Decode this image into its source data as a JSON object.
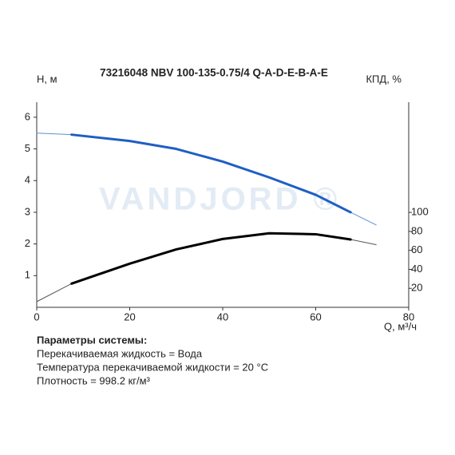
{
  "chart_data": {
    "type": "line",
    "title": "73216048 NBV 100-135-0.75/4 Q-A-D-E-B-A-E",
    "watermark": "VANDJORD ®",
    "y_label": "H, м",
    "y2_label": "КПД, %",
    "x_label": "Q, м³/ч",
    "x": [
      0,
      7.5,
      20,
      30,
      40,
      50,
      60,
      67.5,
      73
    ],
    "series": [
      {
        "color": "#5b8fd6",
        "width": 1,
        "values": [
          5.5,
          5.45,
          5.25,
          5.0,
          4.6,
          4.1,
          3.55,
          3.0,
          2.6
        ]
      },
      {
        "color": "#1f5fc4",
        "width": 3,
        "values": [
          null,
          5.45,
          5.25,
          5.0,
          4.6,
          4.1,
          3.55,
          3.0,
          null
        ]
      },
      {
        "color": "#555555",
        "width": 1,
        "axis": "y2",
        "values": [
          6,
          25,
          46,
          61,
          72,
          78,
          77,
          71.5,
          66
        ]
      },
      {
        "color": "#000000",
        "width": 3,
        "axis": "y2",
        "values": [
          null,
          25,
          46,
          61,
          72,
          78,
          77,
          71.5,
          null
        ]
      }
    ],
    "xlim": [
      0,
      80
    ],
    "xticks": [
      0,
      20,
      40,
      60,
      80
    ],
    "ylim": [
      0,
      6.5
    ],
    "yticks": [
      1,
      2,
      3,
      4,
      5,
      6
    ],
    "y2lim": [
      0,
      217
    ],
    "y2ticks": [
      20,
      40,
      60,
      80,
      100
    ],
    "grid": false
  },
  "params": {
    "heading": "Параметры системы:",
    "lines": [
      "Перекачиваемая жидкость = Вода",
      "Температура перекачиваемой жидкости = 20 °C",
      "Плотность = 998.2 кг/м³"
    ]
  }
}
